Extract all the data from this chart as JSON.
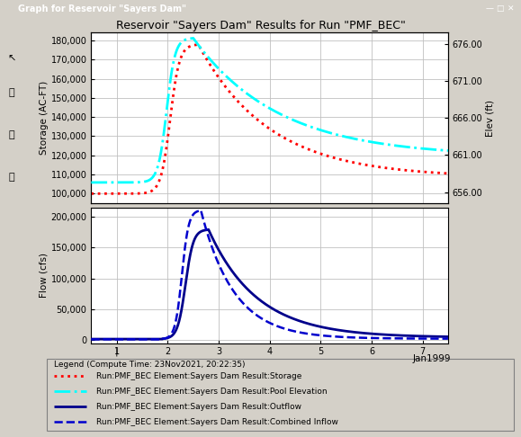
{
  "title": "Reservoir \"Sayers Dam\" Results for Run \"PMF_BEC\"",
  "window_title": "Graph for Reservoir \"Sayers Dam\"",
  "xlabel": "Jan1999",
  "ylabel_top": "Storage (AC-FT)",
  "ylabel_right": "Elev (ft)",
  "ylabel_bottom": "Flow (cfs)",
  "x_ticks": [
    1,
    2,
    3,
    4,
    5,
    6,
    7
  ],
  "x_min": 0.5,
  "x_max": 7.5,
  "storage_yticks": [
    100000,
    110000,
    120000,
    130000,
    140000,
    150000,
    160000,
    170000,
    180000
  ],
  "storage_ylim": [
    95000,
    184000
  ],
  "elev_yticks": [
    656.0,
    661.0,
    666.0,
    671.0,
    676.0
  ],
  "elev_ylim": [
    654.5,
    677.5
  ],
  "flow_yticks": [
    0,
    50000,
    100000,
    150000,
    200000
  ],
  "flow_ylim": [
    -5000,
    215000
  ],
  "storage_color": "#FF0000",
  "elevation_color": "#00FFFF",
  "outflow_color": "#00008B",
  "inflow_color": "#0000CD",
  "bg_color": "#D4D0C8",
  "plot_bg": "#FFFFFF",
  "title_bar_bg": "#D4D0C8",
  "legend_title": "Legend (Compute Time: 23Nov2021, 20:22:35)",
  "legend_items": [
    "Run:PMF_BEC Element:Sayers Dam Result:Storage",
    "Run:PMF_BEC Element:Sayers Dam Result:Pool Elevation",
    "Run:PMF_BEC Element:Sayers Dam Result:Outflow",
    "Run:PMF_BEC Element:Sayers Dam Result:Combined Inflow"
  ]
}
